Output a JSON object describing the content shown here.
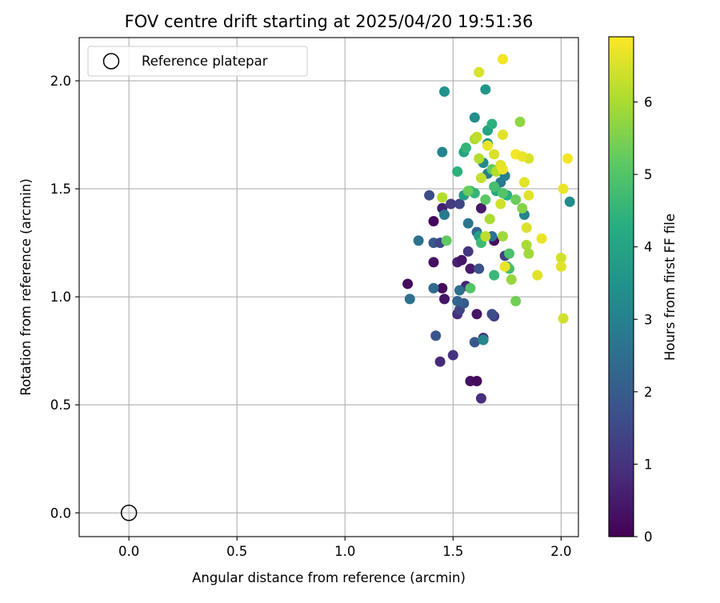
{
  "chart_data": {
    "type": "scatter",
    "title": "FOV centre drift starting at 2025/04/20 19:51:36",
    "xlabel": "Angular distance from reference (arcmin)",
    "ylabel": "Rotation from reference (arcmin)",
    "xlim": [
      -0.23,
      2.08
    ],
    "ylim": [
      -0.11,
      2.2
    ],
    "xticks": [
      "0.0",
      "0.5",
      "1.0",
      "1.5",
      "2.0"
    ],
    "yticks": [
      "0.0",
      "0.5",
      "1.0",
      "1.5",
      "2.0"
    ],
    "grid": true,
    "legend": {
      "position": "top-left",
      "label": "Reference platepar"
    },
    "reference_point": {
      "x": 0.0,
      "y": 0.0
    },
    "colorbar": {
      "label": "Hours from first FF file",
      "range": [
        0,
        6.9
      ],
      "ticks": [
        "0",
        "1",
        "2",
        "3",
        "4",
        "5",
        "6"
      ],
      "colormap": "viridis"
    },
    "points": [
      {
        "x": 1.29,
        "y": 1.06,
        "c": 0.2
      },
      {
        "x": 1.41,
        "y": 1.35,
        "c": 0.1
      },
      {
        "x": 1.41,
        "y": 1.16,
        "c": 0.3
      },
      {
        "x": 1.45,
        "y": 1.04,
        "c": 0.2
      },
      {
        "x": 1.46,
        "y": 0.99,
        "c": 0.4
      },
      {
        "x": 1.45,
        "y": 1.41,
        "c": 0.6
      },
      {
        "x": 1.44,
        "y": 0.7,
        "c": 0.8
      },
      {
        "x": 1.5,
        "y": 0.73,
        "c": 1.0
      },
      {
        "x": 1.52,
        "y": 0.92,
        "c": 0.9
      },
      {
        "x": 1.52,
        "y": 1.16,
        "c": 0.6
      },
      {
        "x": 1.54,
        "y": 1.17,
        "c": 0.4
      },
      {
        "x": 1.56,
        "y": 1.05,
        "c": 0.7
      },
      {
        "x": 1.57,
        "y": 1.21,
        "c": 1.1
      },
      {
        "x": 1.58,
        "y": 1.13,
        "c": 0.5
      },
      {
        "x": 1.58,
        "y": 0.61,
        "c": 0.3
      },
      {
        "x": 1.61,
        "y": 0.61,
        "c": 0.2
      },
      {
        "x": 1.63,
        "y": 0.53,
        "c": 0.9
      },
      {
        "x": 1.61,
        "y": 0.92,
        "c": 0.4
      },
      {
        "x": 1.63,
        "y": 1.41,
        "c": 0.5
      },
      {
        "x": 1.64,
        "y": 0.81,
        "c": 1.1
      },
      {
        "x": 1.69,
        "y": 1.26,
        "c": 0.2
      },
      {
        "x": 1.69,
        "y": 0.91,
        "c": 1.2
      },
      {
        "x": 1.74,
        "y": 1.19,
        "c": 1.3
      },
      {
        "x": 1.53,
        "y": 0.94,
        "c": 1.4
      },
      {
        "x": 1.42,
        "y": 0.82,
        "c": 1.8
      },
      {
        "x": 1.39,
        "y": 1.47,
        "c": 1.6
      },
      {
        "x": 1.41,
        "y": 1.25,
        "c": 1.9
      },
      {
        "x": 1.44,
        "y": 1.25,
        "c": 1.5
      },
      {
        "x": 1.49,
        "y": 1.43,
        "c": 1.2
      },
      {
        "x": 1.53,
        "y": 1.43,
        "c": 1.4
      },
      {
        "x": 1.55,
        "y": 0.97,
        "c": 2.0
      },
      {
        "x": 1.6,
        "y": 0.79,
        "c": 1.9
      },
      {
        "x": 1.62,
        "y": 1.13,
        "c": 1.7
      },
      {
        "x": 1.68,
        "y": 0.92,
        "c": 1.6
      },
      {
        "x": 1.3,
        "y": 0.99,
        "c": 2.5
      },
      {
        "x": 1.34,
        "y": 1.26,
        "c": 2.6
      },
      {
        "x": 1.41,
        "y": 1.04,
        "c": 2.4
      },
      {
        "x": 1.46,
        "y": 1.38,
        "c": 2.8
      },
      {
        "x": 1.52,
        "y": 0.98,
        "c": 2.2
      },
      {
        "x": 1.53,
        "y": 1.03,
        "c": 2.5
      },
      {
        "x": 1.57,
        "y": 1.34,
        "c": 2.7
      },
      {
        "x": 1.61,
        "y": 1.3,
        "c": 2.3
      },
      {
        "x": 1.64,
        "y": 0.8,
        "c": 3.2
      },
      {
        "x": 1.66,
        "y": 1.57,
        "c": 2.9
      },
      {
        "x": 1.68,
        "y": 1.28,
        "c": 2.6
      },
      {
        "x": 1.72,
        "y": 1.53,
        "c": 2.8
      },
      {
        "x": 1.74,
        "y": 1.56,
        "c": 3.0
      },
      {
        "x": 1.83,
        "y": 1.38,
        "c": 3.1
      },
      {
        "x": 2.04,
        "y": 1.44,
        "c": 3.3
      },
      {
        "x": 1.45,
        "y": 1.67,
        "c": 3.1
      },
      {
        "x": 1.46,
        "y": 1.95,
        "c": 3.5
      },
      {
        "x": 1.6,
        "y": 1.83,
        "c": 3.4
      },
      {
        "x": 1.64,
        "y": 1.62,
        "c": 3.2
      },
      {
        "x": 1.65,
        "y": 1.96,
        "c": 3.6
      },
      {
        "x": 1.66,
        "y": 1.71,
        "c": 3.7
      },
      {
        "x": 1.55,
        "y": 1.67,
        "c": 4.0
      },
      {
        "x": 1.55,
        "y": 1.47,
        "c": 3.8
      },
      {
        "x": 1.62,
        "y": 1.28,
        "c": 3.9
      },
      {
        "x": 1.66,
        "y": 1.77,
        "c": 4.0
      },
      {
        "x": 1.7,
        "y": 1.49,
        "c": 4.2
      },
      {
        "x": 1.75,
        "y": 1.14,
        "c": 4.1
      },
      {
        "x": 1.75,
        "y": 1.47,
        "c": 4.3
      },
      {
        "x": 1.52,
        "y": 1.58,
        "c": 4.4
      },
      {
        "x": 1.56,
        "y": 1.69,
        "c": 4.5
      },
      {
        "x": 1.58,
        "y": 1.49,
        "c": 4.6
      },
      {
        "x": 1.6,
        "y": 1.48,
        "c": 4.5
      },
      {
        "x": 1.63,
        "y": 1.25,
        "c": 4.7
      },
      {
        "x": 1.68,
        "y": 1.8,
        "c": 4.4
      },
      {
        "x": 1.69,
        "y": 1.51,
        "c": 4.8
      },
      {
        "x": 1.69,
        "y": 1.1,
        "c": 4.6
      },
      {
        "x": 1.76,
        "y": 1.2,
        "c": 4.9
      },
      {
        "x": 1.76,
        "y": 1.13,
        "c": 4.8
      },
      {
        "x": 1.58,
        "y": 1.04,
        "c": 5.0
      },
      {
        "x": 1.47,
        "y": 1.26,
        "c": 5.2
      },
      {
        "x": 1.57,
        "y": 1.49,
        "c": 5.3
      },
      {
        "x": 1.65,
        "y": 1.45,
        "c": 5.1
      },
      {
        "x": 1.68,
        "y": 1.59,
        "c": 5.2
      },
      {
        "x": 1.73,
        "y": 1.48,
        "c": 5.0
      },
      {
        "x": 1.79,
        "y": 0.98,
        "c": 5.4
      },
      {
        "x": 1.79,
        "y": 1.45,
        "c": 5.3
      },
      {
        "x": 1.81,
        "y": 1.81,
        "c": 5.7
      },
      {
        "x": 1.77,
        "y": 1.08,
        "c": 5.8
      },
      {
        "x": 1.82,
        "y": 1.41,
        "c": 5.6
      },
      {
        "x": 1.84,
        "y": 1.24,
        "c": 6.0
      },
      {
        "x": 1.85,
        "y": 1.2,
        "c": 5.9
      },
      {
        "x": 1.73,
        "y": 1.28,
        "c": 5.9
      },
      {
        "x": 1.67,
        "y": 1.36,
        "c": 6.0
      },
      {
        "x": 1.45,
        "y": 1.46,
        "c": 6.1
      },
      {
        "x": 1.6,
        "y": 1.73,
        "c": 6.0
      },
      {
        "x": 1.61,
        "y": 1.74,
        "c": 6.2
      },
      {
        "x": 1.62,
        "y": 1.64,
        "c": 6.1
      },
      {
        "x": 1.63,
        "y": 1.55,
        "c": 6.3
      },
      {
        "x": 1.65,
        "y": 1.28,
        "c": 6.2
      },
      {
        "x": 1.7,
        "y": 1.58,
        "c": 6.1
      },
      {
        "x": 1.72,
        "y": 1.43,
        "c": 6.4
      },
      {
        "x": 1.62,
        "y": 2.04,
        "c": 6.5
      },
      {
        "x": 1.66,
        "y": 1.7,
        "c": 6.7
      },
      {
        "x": 1.69,
        "y": 1.66,
        "c": 6.5
      },
      {
        "x": 1.72,
        "y": 1.61,
        "c": 6.6
      },
      {
        "x": 1.73,
        "y": 1.75,
        "c": 6.6
      },
      {
        "x": 1.74,
        "y": 1.14,
        "c": 6.7
      },
      {
        "x": 1.83,
        "y": 1.53,
        "c": 6.6
      },
      {
        "x": 1.84,
        "y": 1.32,
        "c": 6.5
      },
      {
        "x": 1.85,
        "y": 1.47,
        "c": 6.6
      },
      {
        "x": 1.85,
        "y": 1.64,
        "c": 6.5
      },
      {
        "x": 1.89,
        "y": 1.1,
        "c": 6.6
      },
      {
        "x": 1.91,
        "y": 1.27,
        "c": 6.7
      },
      {
        "x": 2.0,
        "y": 1.18,
        "c": 6.4
      },
      {
        "x": 2.0,
        "y": 1.14,
        "c": 6.6
      },
      {
        "x": 2.01,
        "y": 1.5,
        "c": 6.7
      },
      {
        "x": 2.01,
        "y": 0.9,
        "c": 6.4
      },
      {
        "x": 2.03,
        "y": 1.64,
        "c": 6.8
      },
      {
        "x": 1.73,
        "y": 2.1,
        "c": 6.8
      },
      {
        "x": 1.79,
        "y": 1.66,
        "c": 6.8
      },
      {
        "x": 1.82,
        "y": 1.65,
        "c": 6.7
      },
      {
        "x": 1.73,
        "y": 1.59,
        "c": 6.7
      }
    ]
  }
}
